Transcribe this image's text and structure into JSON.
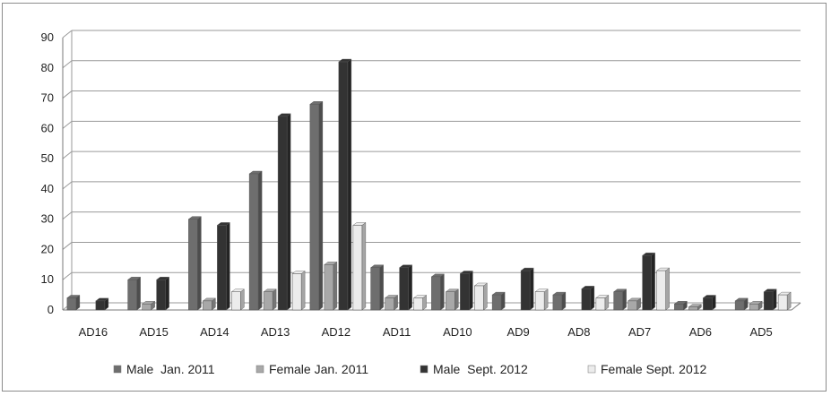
{
  "chart_data": {
    "type": "bar",
    "title": "",
    "xlabel": "",
    "ylabel": "",
    "ylim": [
      0,
      90
    ],
    "yticks": [
      0,
      10,
      20,
      30,
      40,
      50,
      60,
      70,
      80,
      90
    ],
    "grid": true,
    "legend_position": "bottom",
    "categories": [
      "AD16",
      "AD15",
      "AD14",
      "AD13",
      "AD12",
      "AD11",
      "AD10",
      "AD9",
      "AD8",
      "AD7",
      "AD6",
      "AD5"
    ],
    "series": [
      {
        "name": "Male  Jan. 2011",
        "color": "#6e6e6e",
        "values": [
          4,
          10,
          30,
          45,
          68,
          14,
          11,
          5,
          5,
          6,
          2,
          3
        ]
      },
      {
        "name": "Female Jan. 2011",
        "color": "#a8a8a8",
        "values": [
          0,
          2,
          3,
          6,
          15,
          4,
          6,
          0,
          0,
          3,
          1,
          2
        ]
      },
      {
        "name": "Male  Sept. 2012",
        "color": "#333333",
        "values": [
          3,
          10,
          28,
          64,
          82,
          14,
          12,
          13,
          7,
          18,
          4,
          6
        ]
      },
      {
        "name": "Female Sept. 2012",
        "color": "#ececec",
        "values": [
          0,
          0,
          6,
          12,
          28,
          4,
          8,
          6,
          4,
          13,
          0,
          5
        ]
      }
    ]
  }
}
